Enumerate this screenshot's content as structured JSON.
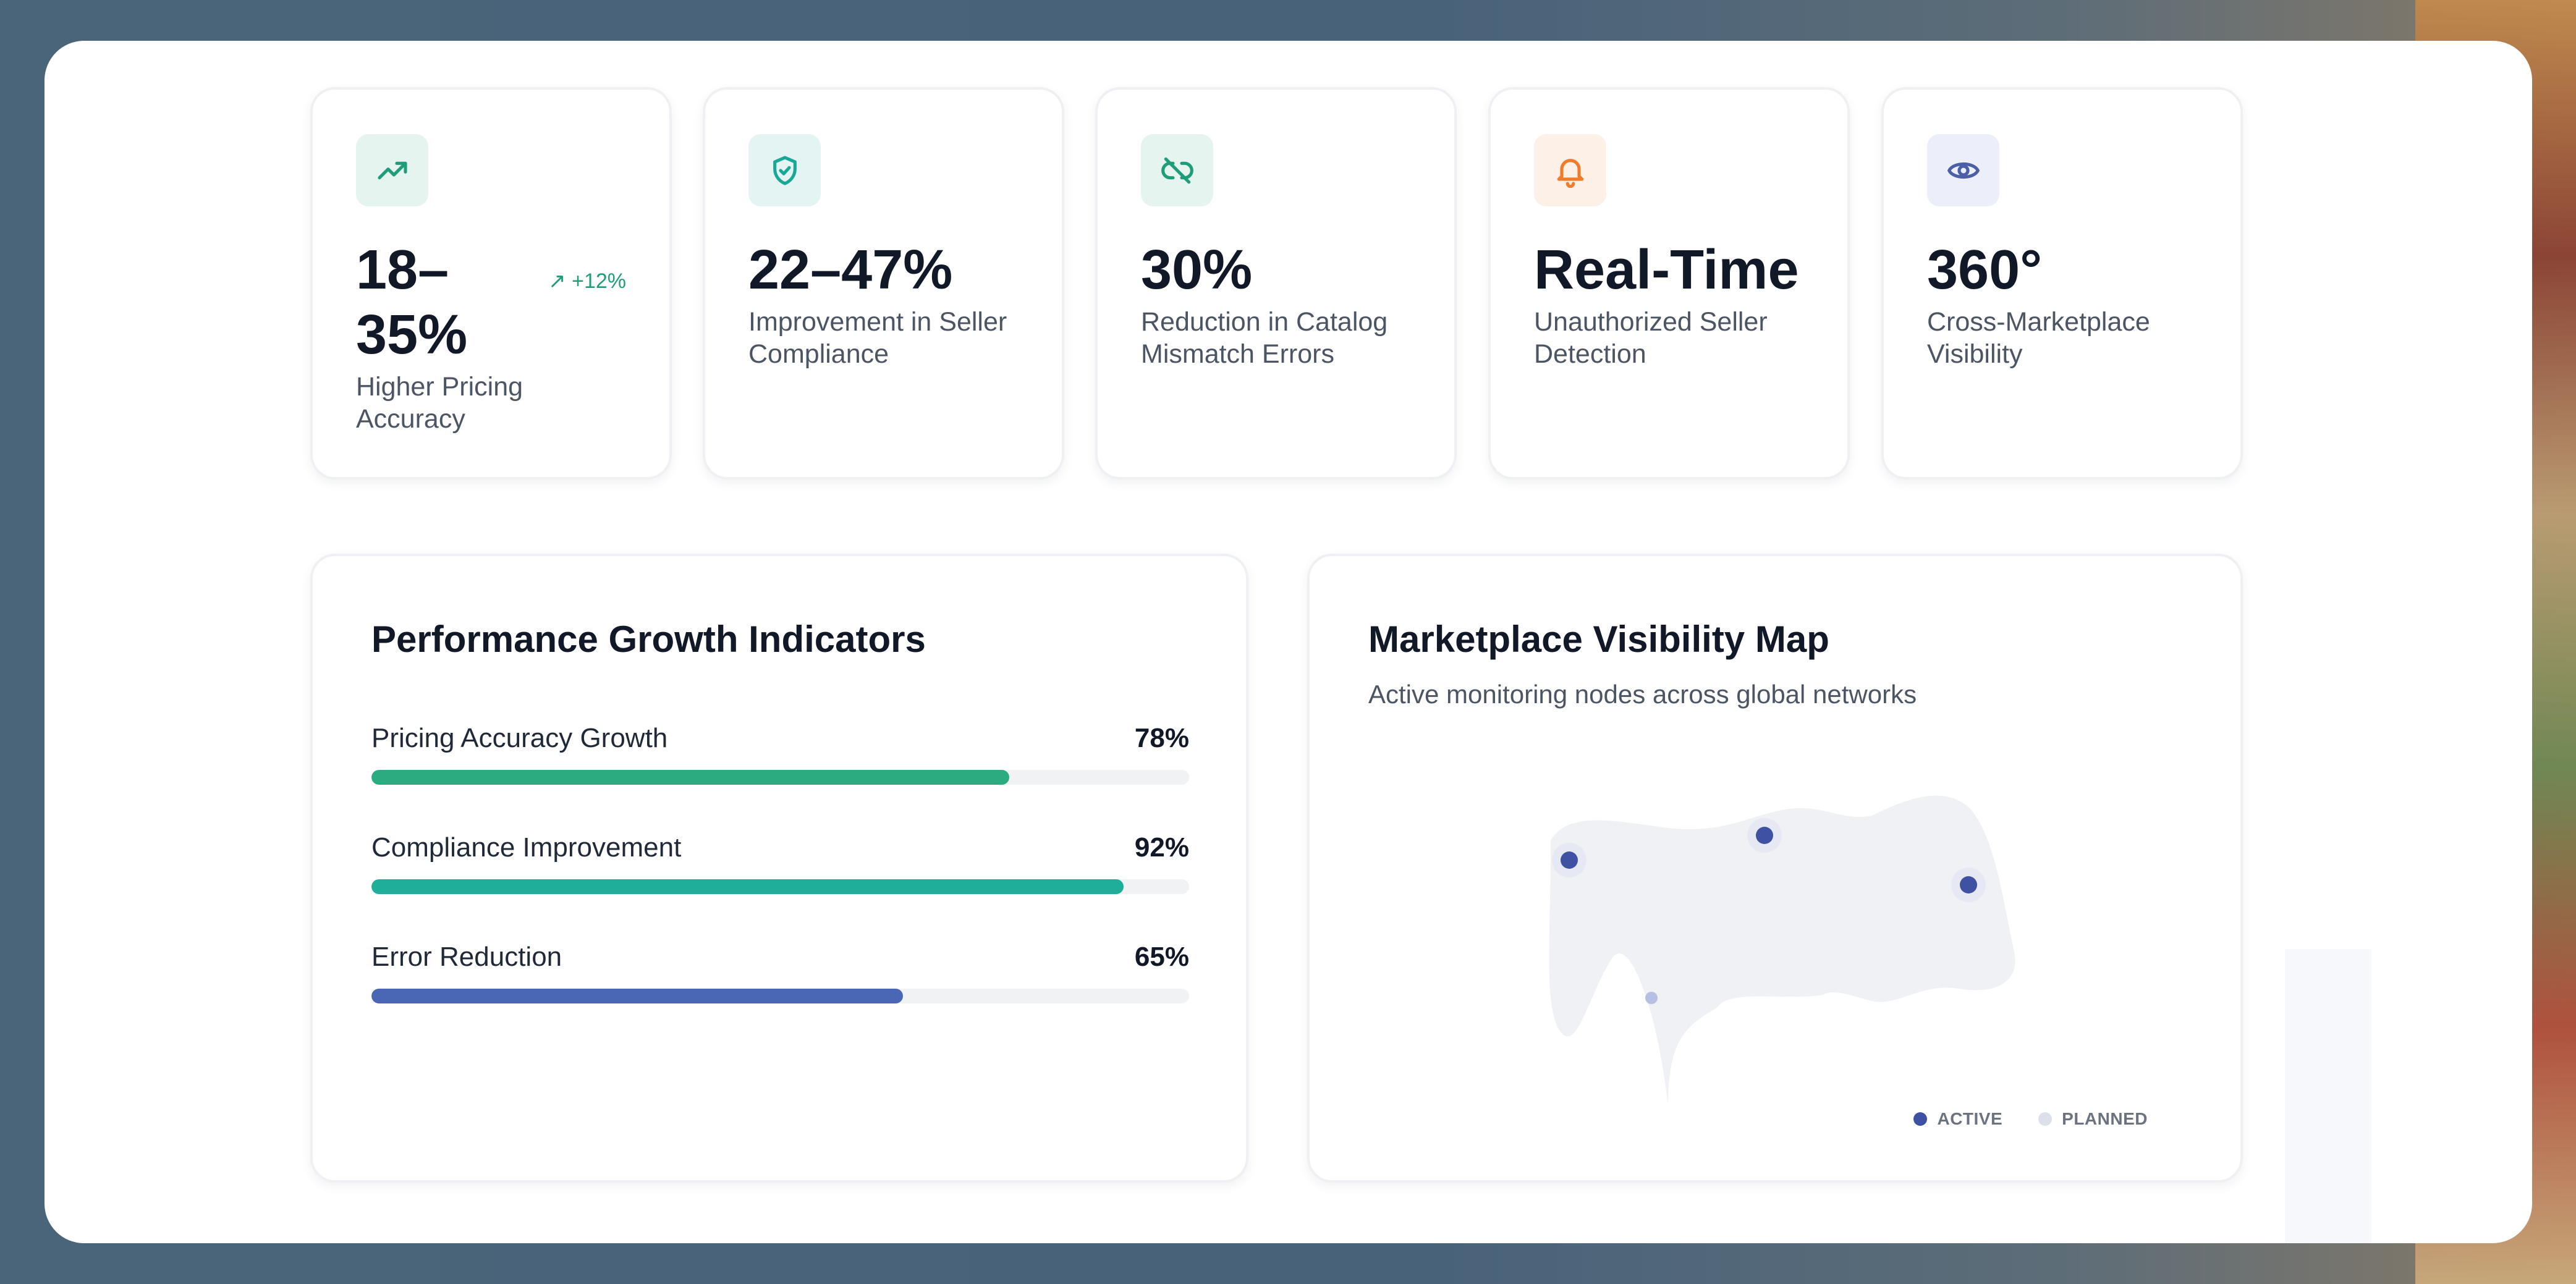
{
  "stats": [
    {
      "value": "18–35%",
      "label": "Higher Pricing Accuracy",
      "trend": "+12%",
      "icon": "trending-up-icon",
      "icon_color": "#1f9d7a",
      "icon_bg": "#e6f4ef"
    },
    {
      "value": "22–47%",
      "label": "Improvement in Seller Compliance",
      "icon": "shield-check-icon",
      "icon_color": "#1aa896",
      "icon_bg": "#e3f4f2"
    },
    {
      "value": "30%",
      "label": "Reduction in Catalog Mismatch Errors",
      "icon": "unlink-icon",
      "icon_color": "#1f9d7a",
      "icon_bg": "#e6f4ef"
    },
    {
      "value": "Real-Time",
      "label": "Unauthorized Seller Detection",
      "icon": "bell-icon",
      "icon_color": "#f07b2a",
      "icon_bg": "#fdf0e6"
    },
    {
      "value": "360°",
      "label": "Cross-Marketplace Visibility",
      "icon": "eye-icon",
      "icon_color": "#4b5fa8",
      "icon_bg": "#eceffa"
    }
  ],
  "performance": {
    "title": "Performance Growth Indicators",
    "metrics": [
      {
        "label": "Pricing Accuracy Growth",
        "value_text": "78%",
        "value": 78,
        "color": "#2bab7f"
      },
      {
        "label": "Compliance Improvement",
        "value_text": "92%",
        "value": 92,
        "color": "#1fae9a"
      },
      {
        "label": "Error Reduction",
        "value_text": "65%",
        "value": 65,
        "color": "#4a67b5"
      }
    ]
  },
  "map": {
    "title": "Marketplace Visibility Map",
    "subtitle": "Active monitoring nodes across global networks",
    "legend_active": "ACTIVE",
    "legend_planned": "PLANNED",
    "active_color": "#3f51a3",
    "planned_color": "#dde0ea"
  }
}
